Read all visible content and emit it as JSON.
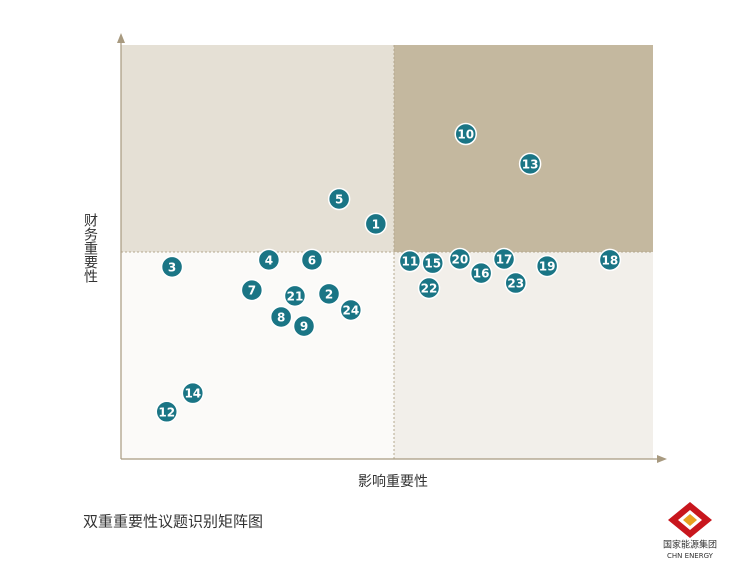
{
  "chart_data": {
    "type": "scatter",
    "x_label": "影响重要性",
    "y_label": "财务重要性",
    "caption": "双重重要性议题识别矩阵图",
    "logo_text": "国家能源集团",
    "logo_subtext": "CHN ENERGY",
    "labels": [
      "1",
      "2",
      "3",
      "4",
      "5",
      "6",
      "7",
      "8",
      "9",
      "10",
      "11",
      "12",
      "13",
      "14",
      "15",
      "16",
      "17",
      "18",
      "19",
      "20",
      "21",
      "22",
      "23",
      "24"
    ],
    "x": [
      47.9,
      39.1,
      9.6,
      27.8,
      41.0,
      35.9,
      24.6,
      30.1,
      34.4,
      64.8,
      54.3,
      8.6,
      76.9,
      13.5,
      58.6,
      67.7,
      72.0,
      91.9,
      80.1,
      63.7,
      32.7,
      57.9,
      74.2,
      43.2
    ],
    "values": [
      56.8,
      39.9,
      46.4,
      48.1,
      62.8,
      48.1,
      40.8,
      34.3,
      32.1,
      78.5,
      47.8,
      11.4,
      71.3,
      15.9,
      47.3,
      44.9,
      48.3,
      48.1,
      46.6,
      48.3,
      39.4,
      41.3,
      42.5,
      36.0
    ],
    "xlim": [
      0,
      100
    ],
    "ylim": [
      0,
      100
    ],
    "color": "#1a7585",
    "quadrant_colors": [
      "#e5e0d5",
      "#c4b89f",
      "#fbfaf8",
      "#f2efea"
    ]
  }
}
